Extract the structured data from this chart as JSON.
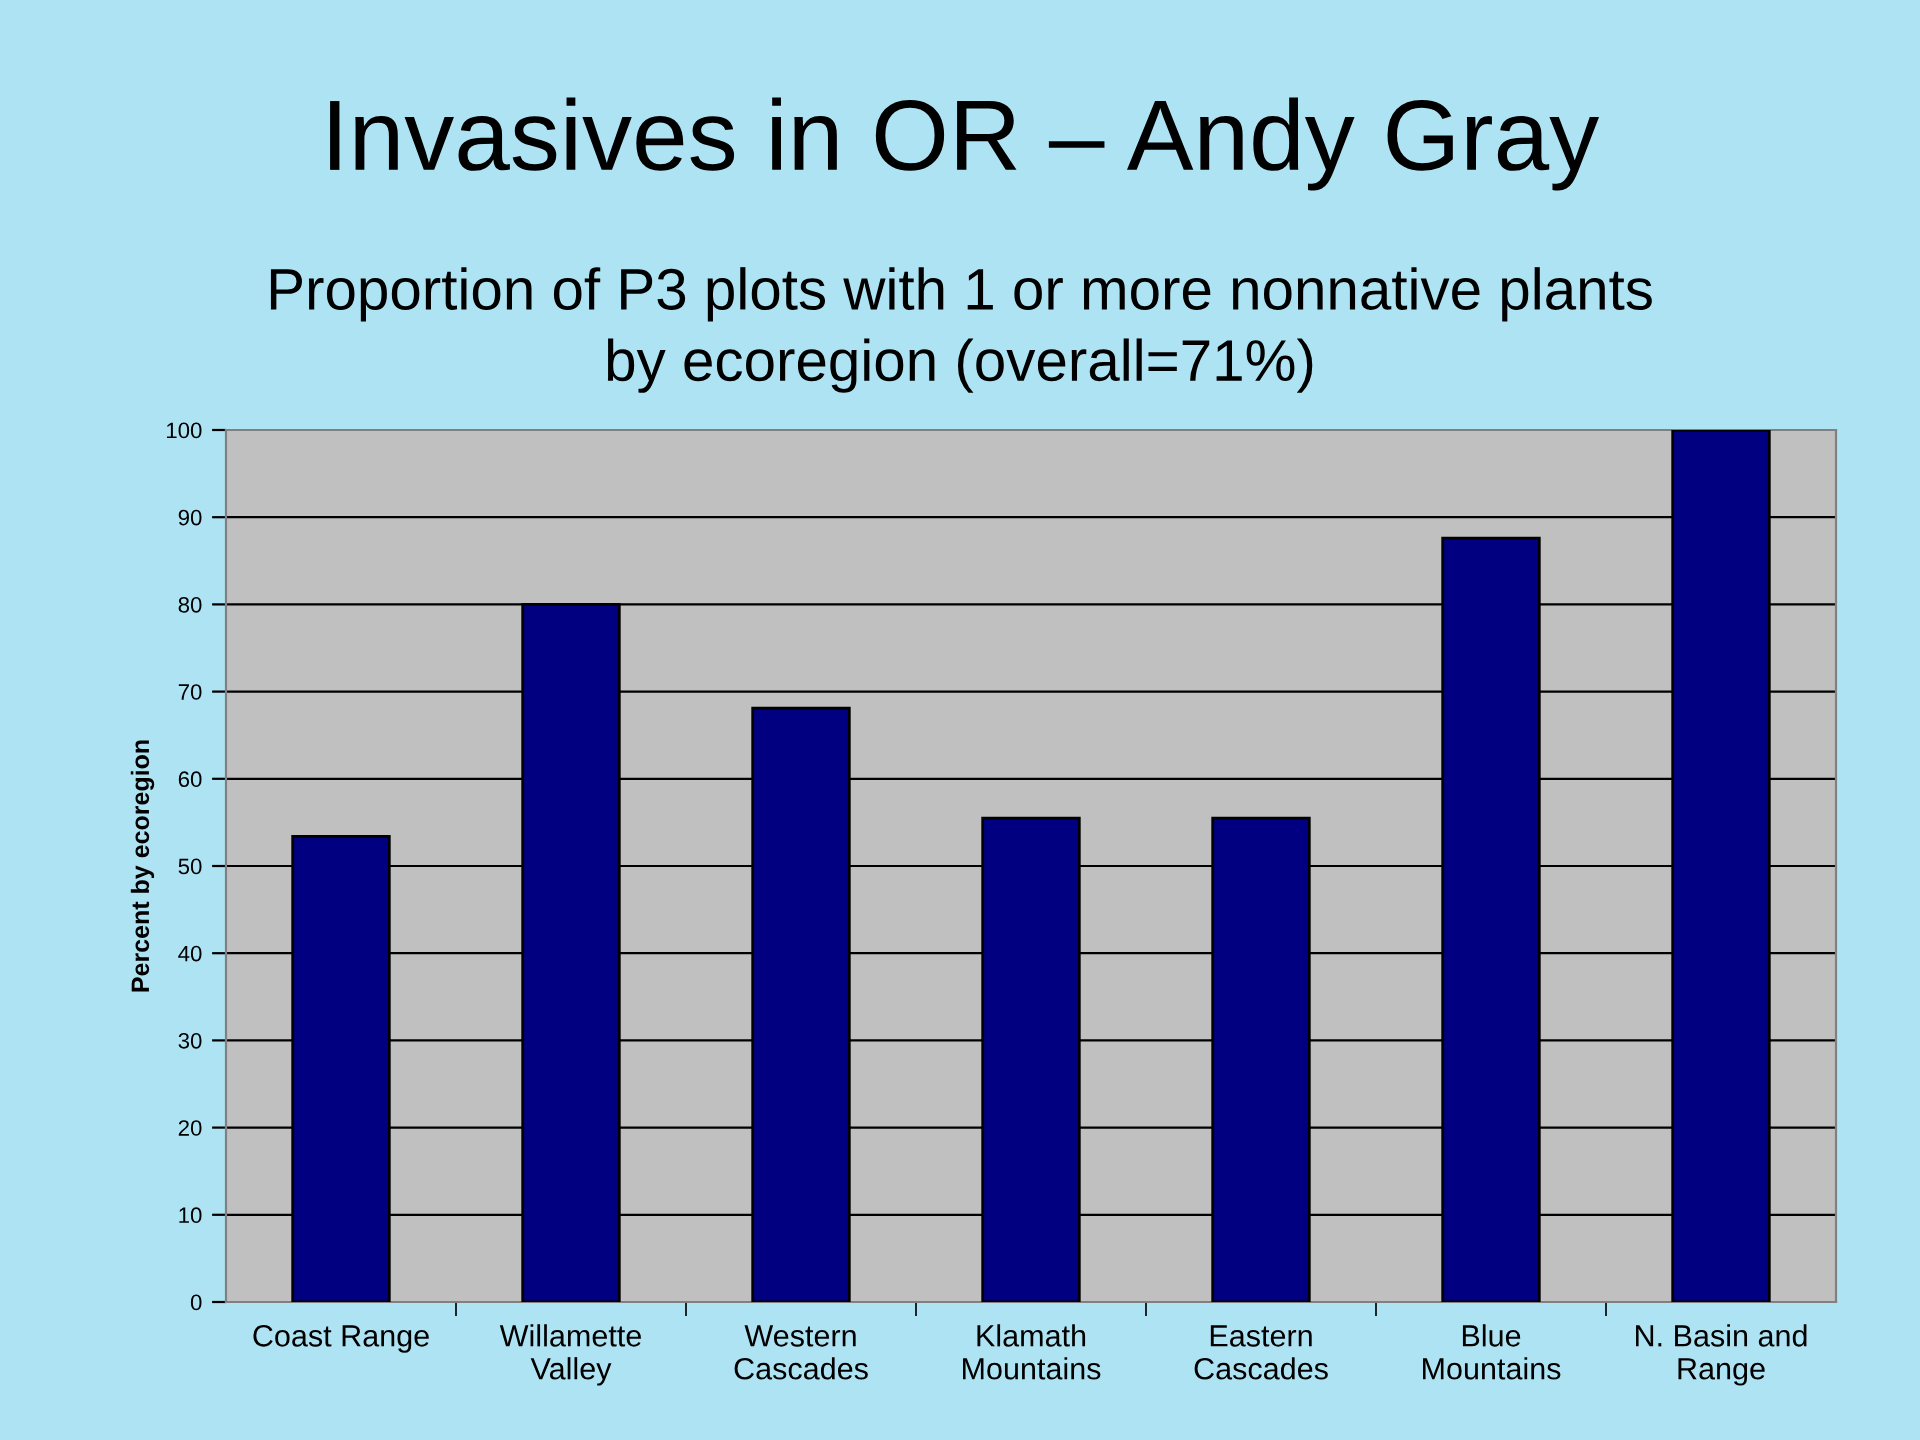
{
  "chart_data": {
    "type": "bar",
    "title": "Invasives in OR – Andy Gray",
    "subtitle": "Proportion of P3 plots with 1 or more nonnative plants\nby ecoregion (overall=71%)",
    "ylabel": "Percent by ecoregion",
    "categories": [
      "Coast Range",
      "Willamette\nValley",
      "Western\nCascades",
      "Klamath\nMountains",
      "Eastern\nCascades",
      "Blue\nMountains",
      "N. Basin and\nRange"
    ],
    "values": [
      53.4,
      80.0,
      68.1,
      55.5,
      55.5,
      87.6,
      100
    ],
    "color": "#000080",
    "ylim": [
      0,
      100
    ],
    "yticks": [
      0,
      10,
      20,
      30,
      40,
      50,
      60,
      70,
      80,
      90,
      100
    ],
    "grid": "y"
  }
}
